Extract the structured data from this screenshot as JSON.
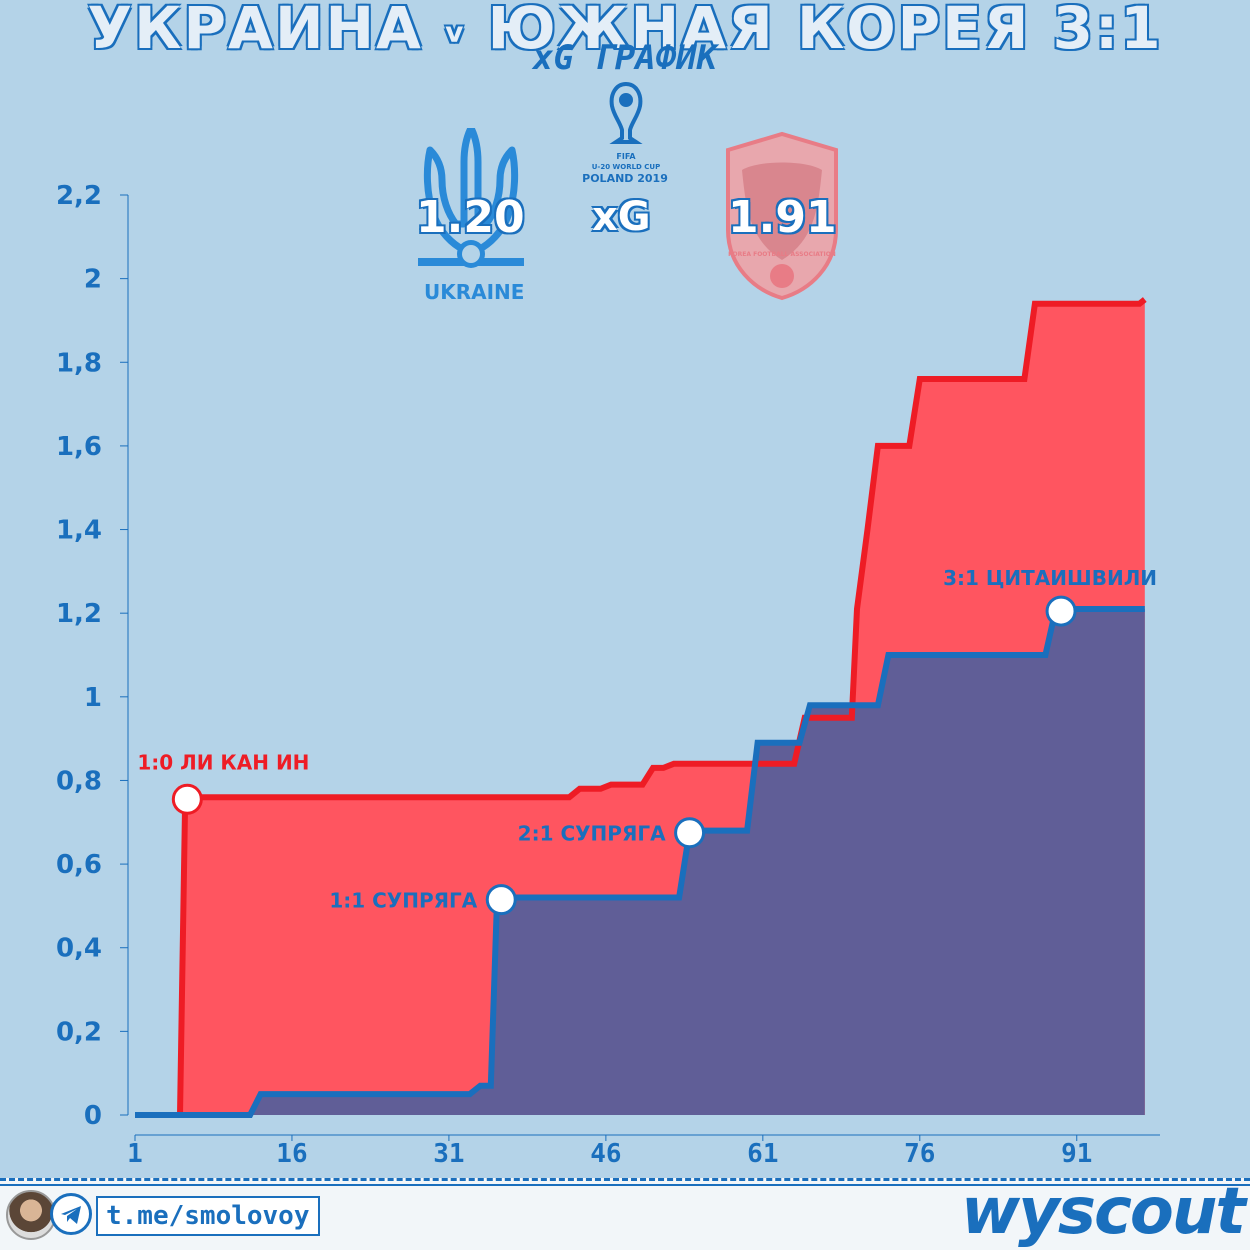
{
  "header": {
    "title_left": "УКРАИНА",
    "title_v": "v",
    "title_right": "ЮЖНАЯ КОРЕЯ 3:1",
    "subtitle": "xG ГРАФИК"
  },
  "teams": {
    "home": {
      "name": "UKRAINE",
      "xg": "1.20"
    },
    "xg_label": "xG",
    "away": {
      "xg": "1.91",
      "crest_text": "KOREA FOOTBALL ASSOCIATION"
    },
    "tournament": {
      "line1": "FIFA",
      "line2": "U-20 WORLD CUP",
      "line3": "POLAND 2019"
    }
  },
  "footer": {
    "link": "t.me/smolovoy",
    "brand": "wyscout"
  },
  "colors": {
    "background": "#b4d3e8",
    "korea_line": "#ee1c25",
    "korea_fill": "#ff5560",
    "ukraine_line": "#1a6fbd",
    "ukraine_fill": "#605e97",
    "axis_text": "#1a6fbd"
  },
  "chart_data": {
    "type": "area",
    "title": "",
    "xlabel": "",
    "ylabel": "",
    "xlim": [
      1,
      98
    ],
    "ylim": [
      0,
      2.2
    ],
    "x_ticks": [
      1,
      16,
      31,
      46,
      61,
      76,
      91
    ],
    "x_tick_labels": [
      "1",
      "16",
      "31",
      "46",
      "61",
      "76",
      "91"
    ],
    "y_ticks": [
      0,
      0.2,
      0.4,
      0.6,
      0.8,
      1,
      1.2,
      1.4,
      1.6,
      1.8,
      2,
      2.2
    ],
    "y_tick_labels": [
      "0",
      "0,2",
      "0,4",
      "0,6",
      "0,8",
      "1",
      "1,2",
      "1,4",
      "1,6",
      "1,8",
      "2",
      "2,2"
    ],
    "grid": false,
    "series": [
      {
        "team": "korea",
        "points": [
          [
            1,
            0
          ],
          [
            5.3,
            0
          ],
          [
            5.8,
            0.76
          ],
          [
            42.5,
            0.76
          ],
          [
            43.5,
            0.78
          ],
          [
            45.5,
            0.78
          ],
          [
            46.5,
            0.79
          ],
          [
            49.5,
            0.79
          ],
          [
            50.5,
            0.83
          ],
          [
            51.5,
            0.83
          ],
          [
            52.5,
            0.84
          ],
          [
            64,
            0.84
          ],
          [
            65,
            0.95
          ],
          [
            69.5,
            0.95
          ],
          [
            70,
            1.21
          ],
          [
            71,
            1.4
          ],
          [
            72,
            1.6
          ],
          [
            75,
            1.6
          ],
          [
            76,
            1.76
          ],
          [
            86,
            1.76
          ],
          [
            87,
            1.94
          ],
          [
            97,
            1.94
          ],
          [
            97.5,
            1.95
          ]
        ]
      },
      {
        "team": "ukraine",
        "points": [
          [
            1,
            0
          ],
          [
            12,
            0
          ],
          [
            13,
            0.05
          ],
          [
            33,
            0.05
          ],
          [
            34,
            0.07
          ],
          [
            35,
            0.07
          ],
          [
            35.6,
            0.52
          ],
          [
            53,
            0.52
          ],
          [
            54,
            0.68
          ],
          [
            59.5,
            0.68
          ],
          [
            60.5,
            0.89
          ],
          [
            64.5,
            0.89
          ],
          [
            65.5,
            0.98
          ],
          [
            72,
            0.98
          ],
          [
            73,
            1.1
          ],
          [
            88,
            1.1
          ],
          [
            89,
            1.21
          ],
          [
            97.5,
            1.21
          ]
        ]
      }
    ],
    "annotations": [
      {
        "text": "1:0 ЛИ КАН ИН",
        "x": 6,
        "y": 0.755,
        "team": "korea"
      },
      {
        "text": "1:1 СУПРЯГА",
        "x": 36,
        "y": 0.515,
        "team": "ukraine"
      },
      {
        "text": "2:1 СУПРЯГА",
        "x": 54,
        "y": 0.675,
        "team": "ukraine"
      },
      {
        "text": "3:1 ЦИТАИШВИЛИ",
        "x": 89.5,
        "y": 1.205,
        "team": "ukraine"
      }
    ]
  }
}
